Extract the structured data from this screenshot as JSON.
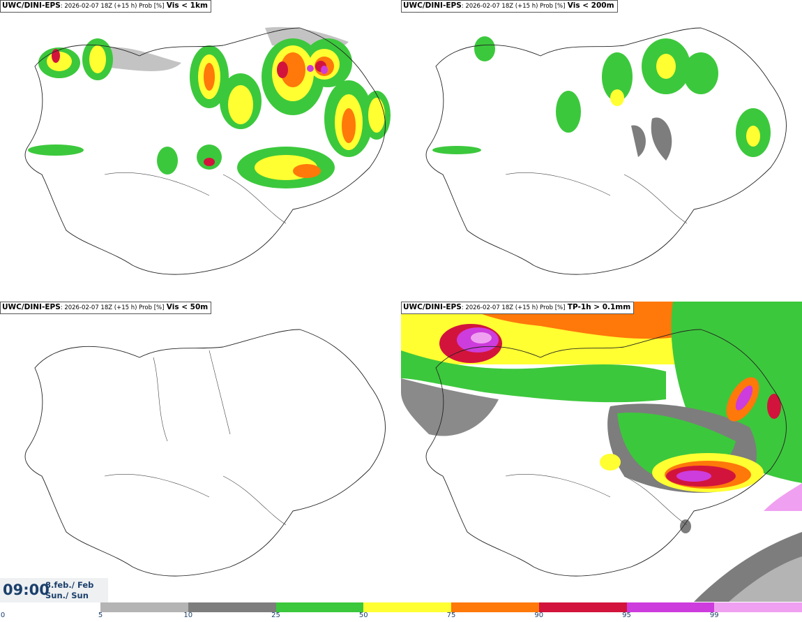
{
  "panels": [
    {
      "source": "UWC/DINI-EPS",
      "meta": ": 2026-02-07 18Z (+15 h) Prob [%]",
      "variable": "Vis < 1km"
    },
    {
      "source": "UWC/DINI-EPS",
      "meta": ": 2026-02-07 18Z (+15 h) Prob [%]",
      "variable": "Vis < 200m"
    },
    {
      "source": "UWC/DINI-EPS",
      "meta": ": 2026-02-07 18Z (+15 h) Prob [%]",
      "variable": "Vis < 50m"
    },
    {
      "source": "UWC/DINI-EPS",
      "meta": ": 2026-02-07 18Z (+15 h) Prob [%]",
      "variable": "TP-1h > 0.1mm"
    }
  ],
  "valid_time": {
    "time": "09:00",
    "date_line1": "8.feb./ Feb",
    "date_line2": "Sun./ Sun"
  },
  "legend": {
    "ticks": [
      "0",
      "5",
      "10",
      "25",
      "50",
      "75",
      "90",
      "95",
      "99"
    ],
    "colors": [
      "#b4b4b4",
      "#7d7d7d",
      "#3cc83c",
      "#ffff32",
      "#ff780a",
      "#d2143c",
      "#cd3cdc",
      "#f0a0f0"
    ]
  }
}
